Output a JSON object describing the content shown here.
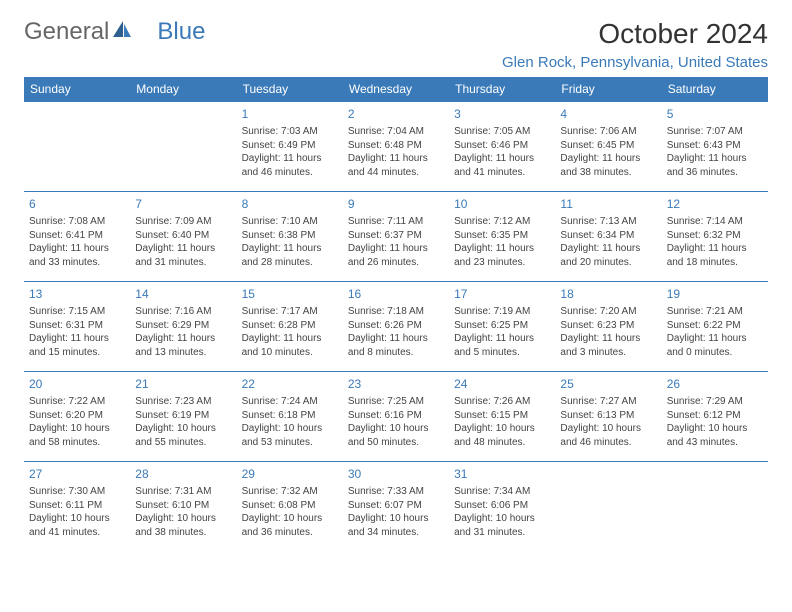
{
  "brand": {
    "general": "General",
    "blue": "Blue",
    "accent_color": "#3a7ab8"
  },
  "header": {
    "month_title": "October 2024",
    "location": "Glen Rock, Pennsylvania, United States"
  },
  "style": {
    "header_bg": "#3a7ab8",
    "header_text": "#ffffff",
    "cell_border": "#3a7ab8",
    "body_text": "#444444",
    "daynum_color": "#3a7ab8",
    "body_fontsize": 10,
    "daynum_fontsize": 12
  },
  "day_names": [
    "Sunday",
    "Monday",
    "Tuesday",
    "Wednesday",
    "Thursday",
    "Friday",
    "Saturday"
  ],
  "weeks": [
    [
      null,
      null,
      {
        "num": "1",
        "sunrise": "Sunrise: 7:03 AM",
        "sunset": "Sunset: 6:49 PM",
        "daylight1": "Daylight: 11 hours",
        "daylight2": "and 46 minutes."
      },
      {
        "num": "2",
        "sunrise": "Sunrise: 7:04 AM",
        "sunset": "Sunset: 6:48 PM",
        "daylight1": "Daylight: 11 hours",
        "daylight2": "and 44 minutes."
      },
      {
        "num": "3",
        "sunrise": "Sunrise: 7:05 AM",
        "sunset": "Sunset: 6:46 PM",
        "daylight1": "Daylight: 11 hours",
        "daylight2": "and 41 minutes."
      },
      {
        "num": "4",
        "sunrise": "Sunrise: 7:06 AM",
        "sunset": "Sunset: 6:45 PM",
        "daylight1": "Daylight: 11 hours",
        "daylight2": "and 38 minutes."
      },
      {
        "num": "5",
        "sunrise": "Sunrise: 7:07 AM",
        "sunset": "Sunset: 6:43 PM",
        "daylight1": "Daylight: 11 hours",
        "daylight2": "and 36 minutes."
      }
    ],
    [
      {
        "num": "6",
        "sunrise": "Sunrise: 7:08 AM",
        "sunset": "Sunset: 6:41 PM",
        "daylight1": "Daylight: 11 hours",
        "daylight2": "and 33 minutes."
      },
      {
        "num": "7",
        "sunrise": "Sunrise: 7:09 AM",
        "sunset": "Sunset: 6:40 PM",
        "daylight1": "Daylight: 11 hours",
        "daylight2": "and 31 minutes."
      },
      {
        "num": "8",
        "sunrise": "Sunrise: 7:10 AM",
        "sunset": "Sunset: 6:38 PM",
        "daylight1": "Daylight: 11 hours",
        "daylight2": "and 28 minutes."
      },
      {
        "num": "9",
        "sunrise": "Sunrise: 7:11 AM",
        "sunset": "Sunset: 6:37 PM",
        "daylight1": "Daylight: 11 hours",
        "daylight2": "and 26 minutes."
      },
      {
        "num": "10",
        "sunrise": "Sunrise: 7:12 AM",
        "sunset": "Sunset: 6:35 PM",
        "daylight1": "Daylight: 11 hours",
        "daylight2": "and 23 minutes."
      },
      {
        "num": "11",
        "sunrise": "Sunrise: 7:13 AM",
        "sunset": "Sunset: 6:34 PM",
        "daylight1": "Daylight: 11 hours",
        "daylight2": "and 20 minutes."
      },
      {
        "num": "12",
        "sunrise": "Sunrise: 7:14 AM",
        "sunset": "Sunset: 6:32 PM",
        "daylight1": "Daylight: 11 hours",
        "daylight2": "and 18 minutes."
      }
    ],
    [
      {
        "num": "13",
        "sunrise": "Sunrise: 7:15 AM",
        "sunset": "Sunset: 6:31 PM",
        "daylight1": "Daylight: 11 hours",
        "daylight2": "and 15 minutes."
      },
      {
        "num": "14",
        "sunrise": "Sunrise: 7:16 AM",
        "sunset": "Sunset: 6:29 PM",
        "daylight1": "Daylight: 11 hours",
        "daylight2": "and 13 minutes."
      },
      {
        "num": "15",
        "sunrise": "Sunrise: 7:17 AM",
        "sunset": "Sunset: 6:28 PM",
        "daylight1": "Daylight: 11 hours",
        "daylight2": "and 10 minutes."
      },
      {
        "num": "16",
        "sunrise": "Sunrise: 7:18 AM",
        "sunset": "Sunset: 6:26 PM",
        "daylight1": "Daylight: 11 hours",
        "daylight2": "and 8 minutes."
      },
      {
        "num": "17",
        "sunrise": "Sunrise: 7:19 AM",
        "sunset": "Sunset: 6:25 PM",
        "daylight1": "Daylight: 11 hours",
        "daylight2": "and 5 minutes."
      },
      {
        "num": "18",
        "sunrise": "Sunrise: 7:20 AM",
        "sunset": "Sunset: 6:23 PM",
        "daylight1": "Daylight: 11 hours",
        "daylight2": "and 3 minutes."
      },
      {
        "num": "19",
        "sunrise": "Sunrise: 7:21 AM",
        "sunset": "Sunset: 6:22 PM",
        "daylight1": "Daylight: 11 hours",
        "daylight2": "and 0 minutes."
      }
    ],
    [
      {
        "num": "20",
        "sunrise": "Sunrise: 7:22 AM",
        "sunset": "Sunset: 6:20 PM",
        "daylight1": "Daylight: 10 hours",
        "daylight2": "and 58 minutes."
      },
      {
        "num": "21",
        "sunrise": "Sunrise: 7:23 AM",
        "sunset": "Sunset: 6:19 PM",
        "daylight1": "Daylight: 10 hours",
        "daylight2": "and 55 minutes."
      },
      {
        "num": "22",
        "sunrise": "Sunrise: 7:24 AM",
        "sunset": "Sunset: 6:18 PM",
        "daylight1": "Daylight: 10 hours",
        "daylight2": "and 53 minutes."
      },
      {
        "num": "23",
        "sunrise": "Sunrise: 7:25 AM",
        "sunset": "Sunset: 6:16 PM",
        "daylight1": "Daylight: 10 hours",
        "daylight2": "and 50 minutes."
      },
      {
        "num": "24",
        "sunrise": "Sunrise: 7:26 AM",
        "sunset": "Sunset: 6:15 PM",
        "daylight1": "Daylight: 10 hours",
        "daylight2": "and 48 minutes."
      },
      {
        "num": "25",
        "sunrise": "Sunrise: 7:27 AM",
        "sunset": "Sunset: 6:13 PM",
        "daylight1": "Daylight: 10 hours",
        "daylight2": "and 46 minutes."
      },
      {
        "num": "26",
        "sunrise": "Sunrise: 7:29 AM",
        "sunset": "Sunset: 6:12 PM",
        "daylight1": "Daylight: 10 hours",
        "daylight2": "and 43 minutes."
      }
    ],
    [
      {
        "num": "27",
        "sunrise": "Sunrise: 7:30 AM",
        "sunset": "Sunset: 6:11 PM",
        "daylight1": "Daylight: 10 hours",
        "daylight2": "and 41 minutes."
      },
      {
        "num": "28",
        "sunrise": "Sunrise: 7:31 AM",
        "sunset": "Sunset: 6:10 PM",
        "daylight1": "Daylight: 10 hours",
        "daylight2": "and 38 minutes."
      },
      {
        "num": "29",
        "sunrise": "Sunrise: 7:32 AM",
        "sunset": "Sunset: 6:08 PM",
        "daylight1": "Daylight: 10 hours",
        "daylight2": "and 36 minutes."
      },
      {
        "num": "30",
        "sunrise": "Sunrise: 7:33 AM",
        "sunset": "Sunset: 6:07 PM",
        "daylight1": "Daylight: 10 hours",
        "daylight2": "and 34 minutes."
      },
      {
        "num": "31",
        "sunrise": "Sunrise: 7:34 AM",
        "sunset": "Sunset: 6:06 PM",
        "daylight1": "Daylight: 10 hours",
        "daylight2": "and 31 minutes."
      },
      null,
      null
    ]
  ]
}
